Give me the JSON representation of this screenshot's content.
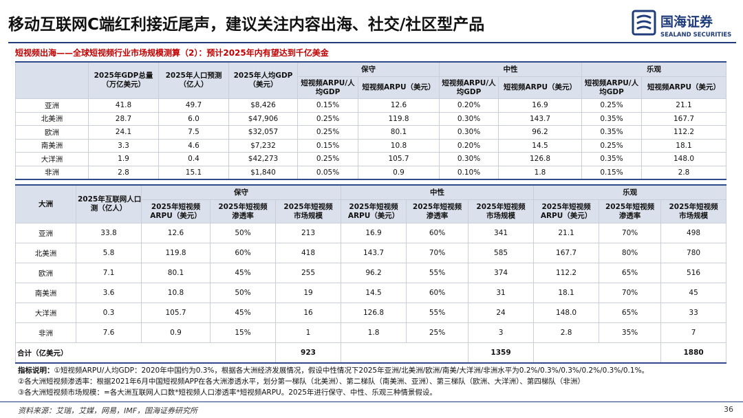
{
  "header": {
    "title": "移动互联网C端红利接近尾声，建议关注内容出海、社交/社区型产品",
    "logo_cn": "国海证券",
    "logo_en": "SEALAND SECURITIES"
  },
  "subtitle": "短视频出海——全球短视频行业市场规模测算（2）：预计2025年内有望达到千亿美金",
  "table1": {
    "columns": [
      [
        "2025年GDP总量",
        "（万亿美元）"
      ],
      [
        "2025年人口预测",
        "（亿人）"
      ],
      [
        "2025年人均GDP",
        "（美元）"
      ]
    ],
    "groups": [
      "保守",
      "中性",
      "乐观"
    ],
    "subcolumns": [
      [
        "短视频ARPU/人",
        "均GDP"
      ],
      [
        "短视频ARPU（美元）"
      ],
      [
        "短视频ARPU/人",
        "均GDP"
      ],
      [
        "短视频ARPU（美元）"
      ],
      [
        "短视频ARPU/人",
        "均GDP"
      ],
      [
        "短视频ARPU（美元）"
      ]
    ],
    "rows": [
      [
        "亚洲",
        "41.8",
        "49.7",
        "$8,426",
        "0.15%",
        "12.6",
        "0.20%",
        "16.9",
        "0.25%",
        "21.1"
      ],
      [
        "北美洲",
        "28.7",
        "6.0",
        "$47,906",
        "0.25%",
        "119.8",
        "0.30%",
        "143.7",
        "0.35%",
        "167.7"
      ],
      [
        "欧洲",
        "24.1",
        "7.5",
        "$32,057",
        "0.25%",
        "80.1",
        "0.30%",
        "96.2",
        "0.35%",
        "112.2"
      ],
      [
        "南美洲",
        "3.3",
        "4.6",
        "$7,232",
        "0.15%",
        "10.8",
        "0.20%",
        "14.5",
        "0.25%",
        "18.1"
      ],
      [
        "大洋洲",
        "1.9",
        "0.4",
        "$42,273",
        "0.25%",
        "105.7",
        "0.30%",
        "126.8",
        "0.35%",
        "148.0"
      ],
      [
        "非洲",
        "2.8",
        "15.1",
        "$1,840",
        "0.05%",
        "0.9",
        "0.10%",
        "1.8",
        "0.15%",
        "2.8"
      ]
    ]
  },
  "table2": {
    "columns": [
      [
        "大洲"
      ],
      [
        "2025年互联网人口预",
        "测（亿人）"
      ]
    ],
    "groups": [
      "保守",
      "中性",
      "乐观"
    ],
    "subcolumns": [
      [
        "2025年短视频",
        "ARPU（美元）"
      ],
      [
        "2025年短视频",
        "渗透率"
      ],
      [
        "2025年短视频",
        "市场规模"
      ],
      [
        "2025年短视频",
        "ARPU（美元）"
      ],
      [
        "2025年短视频",
        "渗透率"
      ],
      [
        "2025年短视频",
        "市场规模"
      ],
      [
        "2025年短视频",
        "ARPU（美元）"
      ],
      [
        "2025年短视频",
        "渗透率"
      ],
      [
        "2025年短视频",
        "市场规模"
      ]
    ],
    "rows": [
      [
        "亚洲",
        "33.8",
        "12.6",
        "50%",
        "213",
        "16.9",
        "60%",
        "341",
        "21.1",
        "70%",
        "498"
      ],
      [
        "北美洲",
        "5.8",
        "119.8",
        "60%",
        "418",
        "143.7",
        "70%",
        "585",
        "167.7",
        "80%",
        "780"
      ],
      [
        "欧洲",
        "7.1",
        "80.1",
        "45%",
        "255",
        "96.2",
        "55%",
        "374",
        "112.2",
        "65%",
        "516"
      ],
      [
        "南美洲",
        "3.6",
        "10.8",
        "50%",
        "19",
        "14.5",
        "60%",
        "31",
        "18.1",
        "70%",
        "45"
      ],
      [
        "大洋洲",
        "0.3",
        "105.7",
        "45%",
        "16",
        "126.8",
        "55%",
        "24",
        "148.0",
        "65%",
        "33"
      ],
      [
        "非洲",
        "7.6",
        "0.9",
        "15%",
        "1",
        "1.8",
        "25%",
        "3",
        "2.8",
        "35%",
        "7"
      ]
    ],
    "total_label": "合计（亿美元）",
    "totals": [
      "923",
      "1359",
      "1880"
    ]
  },
  "notes": {
    "lead": "指标说明：",
    "lines": [
      "①短视频ARPU/人均GDP：2020年中国约为0.3%，根据各大洲经济发展情况，假设中性情况下2025年亚洲/北美洲/欧洲/南美/大洋洲/非洲水平为0.2%/0.3%/0.3%/0.2%/0.3%/0.1%。",
      "②各大洲短视频渗透率：根据2021年6月中国短视频APP在各大洲渗透水平，划分第一梯队（北美洲）、第二梯队（南美洲、亚洲）、第三梯队（欧洲、大洋洲）、第四梯队（非洲）",
      "③各大洲短视频市场规模：=各大洲互联网人口数*短视频人口渗透率*短视频ARPU。2025年进行保守、中性、乐观三种情景假设。"
    ]
  },
  "footer": {
    "source": "资料来源：艾瑞，艾媒，网易，IMF，国海证券研究所",
    "page": "36"
  }
}
